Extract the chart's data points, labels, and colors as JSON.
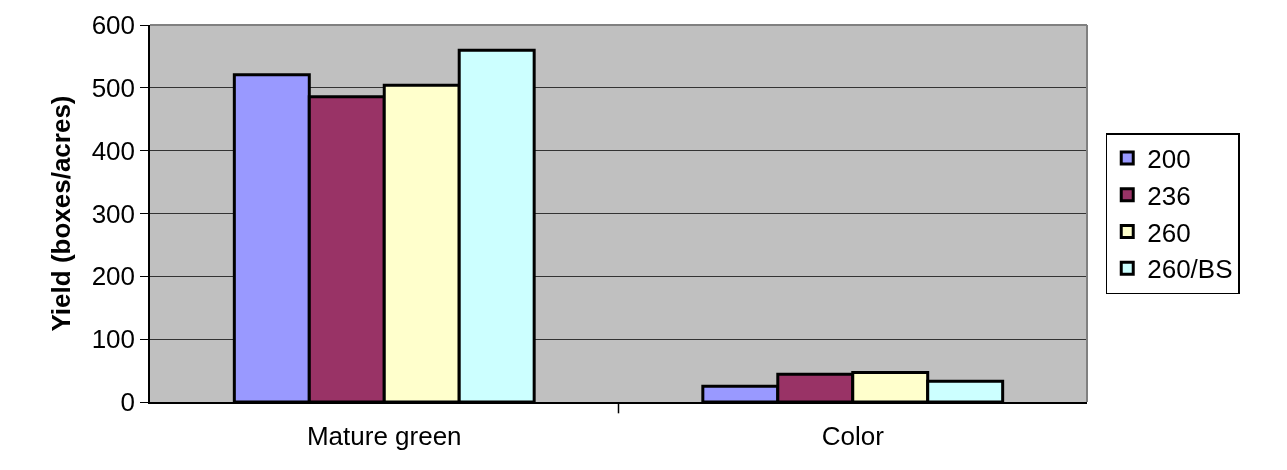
{
  "chart_data": {
    "type": "bar",
    "ylabel": "Yield (boxes/acres)",
    "categories": [
      "Mature green",
      "Color"
    ],
    "series": [
      {
        "name": "200",
        "color": "#9999ff",
        "values": [
          521,
          25
        ]
      },
      {
        "name": "236",
        "color": "#993366",
        "values": [
          486,
          44
        ]
      },
      {
        "name": "260",
        "color": "#ffffcc",
        "values": [
          504,
          47
        ]
      },
      {
        "name": "260/BS",
        "color": "#ccffff",
        "values": [
          560,
          33
        ]
      }
    ],
    "ylim": [
      0,
      600
    ],
    "yticks": [
      0,
      100,
      200,
      300,
      400,
      500,
      600
    ],
    "grid": "y",
    "legend": "right"
  }
}
